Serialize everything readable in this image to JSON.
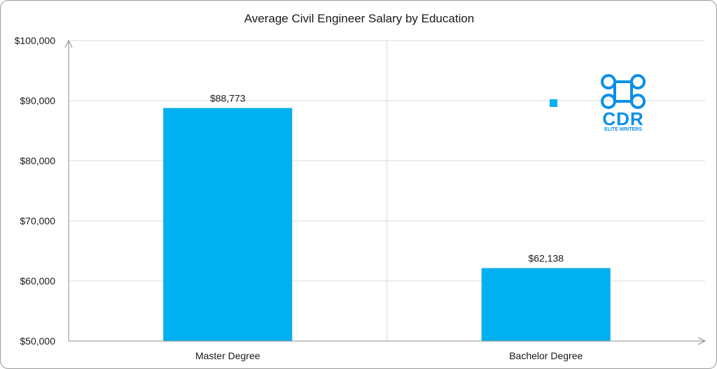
{
  "chart_data": {
    "type": "bar",
    "title": "Average Civil Engineer Salary by Education",
    "categories": [
      "Master Degree",
      "Bachelor Degree"
    ],
    "values": [
      88773,
      62138
    ],
    "data_labels": [
      "$88,773",
      "$62,138"
    ],
    "ylim": [
      50000,
      100000
    ],
    "yticks": [
      50000,
      60000,
      70000,
      80000,
      90000,
      100000
    ],
    "ytick_labels": [
      "$50,000",
      "$60,000",
      "$70,000",
      "$80,000",
      "$90,000",
      "$100,000"
    ],
    "xlabel": "",
    "ylabel": "",
    "grid": true,
    "legend": "none",
    "bar_color": "#00B0F0"
  },
  "logo": {
    "text": "CDR",
    "subtext": "ELITE WRITERS",
    "color": "#0A8FE8"
  }
}
